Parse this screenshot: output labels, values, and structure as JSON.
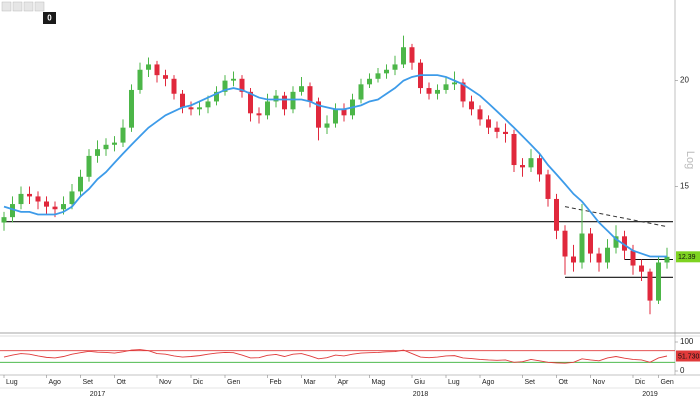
{
  "toolbar": {
    "badge": "0"
  },
  "chart_data": [
    {
      "type": "candlestick",
      "log_scale": true,
      "scale_label": "Log",
      "categories": [
        "Lug",
        null,
        null,
        null,
        null,
        "Ago",
        null,
        null,
        null,
        "Set",
        null,
        null,
        null,
        "Ott",
        null,
        null,
        null,
        null,
        "Nov",
        null,
        null,
        null,
        "Dic",
        null,
        null,
        null,
        "Gen",
        null,
        null,
        null,
        null,
        "Feb",
        null,
        null,
        null,
        "Mar",
        null,
        null,
        null,
        "Apr",
        null,
        null,
        null,
        "Mag",
        null,
        null,
        null,
        null,
        "Giu",
        null,
        null,
        null,
        "Lug",
        null,
        null,
        null,
        "Ago",
        null,
        null,
        null,
        null,
        "Set",
        null,
        null,
        null,
        "Ott",
        null,
        null,
        null,
        "Nov",
        null,
        null,
        null,
        null,
        "Dic",
        null,
        null,
        "Gen",
        null
      ],
      "years": [
        null,
        null,
        null,
        null,
        null,
        null,
        null,
        null,
        null,
        null,
        null,
        "2017",
        null,
        null,
        null,
        null,
        null,
        null,
        null,
        null,
        null,
        null,
        null,
        null,
        null,
        null,
        null,
        null,
        null,
        null,
        null,
        null,
        null,
        null,
        null,
        null,
        null,
        null,
        null,
        null,
        null,
        null,
        null,
        null,
        null,
        null,
        null,
        null,
        null,
        "2018",
        null,
        null,
        null,
        null,
        null,
        null,
        null,
        null,
        null,
        null,
        null,
        null,
        null,
        null,
        null,
        null,
        null,
        null,
        null,
        null,
        null,
        null,
        null,
        null,
        null,
        null,
        "2019",
        null,
        null
      ],
      "open": [
        13.6,
        13.8,
        14.3,
        14.7,
        14.6,
        14.4,
        14.2,
        14.1,
        14.3,
        14.8,
        15.4,
        16.3,
        16.6,
        16.8,
        16.9,
        17.6,
        19.5,
        20.6,
        20.9,
        20.3,
        20.1,
        19.3,
        18.6,
        18.5,
        18.6,
        18.9,
        19.4,
        20.0,
        20.1,
        19.4,
        18.3,
        18.2,
        18.9,
        19.2,
        18.5,
        19.4,
        19.7,
        18.9,
        17.6,
        17.8,
        18.5,
        18.2,
        19.0,
        19.8,
        20.1,
        20.4,
        20.6,
        20.9,
        21.9,
        21.0,
        19.6,
        19.3,
        19.5,
        19.8,
        19.9,
        18.9,
        18.5,
        18.0,
        17.6,
        17.4,
        17.3,
        15.9,
        15.8,
        16.2,
        15.5,
        14.5,
        13.3,
        12.4,
        12.2,
        13.2,
        12.5,
        12.2,
        12.7,
        13.1,
        12.6,
        12.1,
        11.9,
        11.0,
        12.2
      ],
      "high": [
        14.0,
        14.6,
        15.0,
        15.0,
        14.8,
        14.6,
        14.4,
        14.6,
        15.1,
        15.7,
        16.6,
        17.0,
        17.1,
        17.2,
        18.0,
        19.8,
        21.0,
        21.3,
        21.1,
        20.6,
        20.3,
        19.5,
        18.9,
        18.9,
        19.2,
        19.7,
        20.3,
        20.5,
        20.3,
        19.6,
        18.6,
        19.3,
        19.5,
        19.4,
        19.7,
        20.2,
        19.9,
        19.1,
        18.2,
        18.8,
        18.8,
        19.3,
        20.1,
        20.4,
        20.7,
        20.9,
        21.4,
        22.6,
        22.1,
        21.2,
        19.9,
        19.8,
        20.2,
        20.5,
        20.1,
        19.2,
        18.7,
        18.2,
        17.9,
        17.8,
        17.5,
        16.2,
        16.6,
        16.4,
        15.7,
        14.7,
        13.5,
        12.8,
        14.3,
        13.4,
        12.7,
        13.0,
        13.5,
        13.3,
        12.8,
        12.3,
        12.0,
        12.4,
        12.7
      ],
      "low": [
        13.3,
        13.6,
        14.1,
        14.3,
        14.1,
        13.9,
        13.8,
        13.9,
        14.1,
        14.6,
        15.2,
        16.0,
        16.3,
        16.5,
        16.7,
        17.4,
        19.3,
        20.2,
        19.9,
        19.7,
        19.0,
        18.3,
        18.2,
        18.2,
        18.3,
        18.7,
        19.2,
        19.7,
        19.1,
        17.9,
        17.8,
        18.0,
        18.6,
        18.2,
        18.3,
        19.2,
        18.6,
        17.0,
        17.3,
        17.6,
        17.9,
        18.0,
        18.8,
        19.6,
        19.9,
        20.1,
        20.3,
        20.7,
        20.6,
        19.3,
        19.0,
        19.0,
        19.3,
        19.5,
        18.6,
        18.2,
        17.7,
        17.3,
        17.1,
        16.9,
        15.6,
        15.4,
        15.6,
        15.2,
        14.2,
        13.0,
        11.8,
        11.9,
        12.0,
        12.2,
        11.9,
        12.0,
        12.5,
        12.3,
        11.8,
        11.6,
        10.6,
        10.9,
        12.0
      ],
      "close": [
        13.8,
        14.3,
        14.7,
        14.6,
        14.4,
        14.2,
        14.1,
        14.3,
        14.8,
        15.4,
        16.3,
        16.6,
        16.8,
        16.9,
        17.6,
        19.5,
        20.6,
        20.9,
        20.3,
        20.1,
        19.3,
        18.6,
        18.5,
        18.6,
        18.9,
        19.4,
        20.0,
        20.1,
        19.4,
        18.3,
        18.2,
        18.9,
        19.2,
        18.5,
        19.4,
        19.7,
        18.9,
        17.6,
        17.8,
        18.5,
        18.2,
        19.0,
        19.8,
        20.1,
        20.4,
        20.6,
        20.9,
        21.9,
        21.0,
        19.6,
        19.3,
        19.5,
        19.8,
        19.9,
        18.9,
        18.5,
        18.0,
        17.6,
        17.4,
        17.3,
        15.9,
        15.8,
        16.2,
        15.5,
        14.5,
        13.3,
        12.4,
        12.2,
        13.2,
        12.5,
        12.2,
        12.7,
        13.1,
        12.6,
        12.1,
        11.9,
        11.0,
        12.2,
        12.39
      ],
      "up_color": "#4cb648",
      "down_color": "#e0283c",
      "moving_average": [
        14.2,
        14.1,
        14.0,
        14.0,
        13.9,
        13.9,
        13.9,
        14.0,
        14.2,
        14.6,
        14.9,
        15.3,
        15.6,
        16.0,
        16.4,
        16.8,
        17.2,
        17.6,
        17.9,
        18.2,
        18.4,
        18.6,
        18.7,
        18.9,
        19.1,
        19.3,
        19.5,
        19.6,
        19.5,
        19.3,
        19.1,
        19.0,
        19.0,
        19.0,
        19.0,
        19.0,
        18.9,
        18.7,
        18.6,
        18.5,
        18.5,
        18.6,
        18.7,
        18.9,
        19.0,
        19.3,
        19.6,
        20.0,
        20.2,
        20.3,
        20.3,
        20.3,
        20.2,
        20.0,
        19.8,
        19.5,
        19.2,
        18.8,
        18.4,
        18.0,
        17.6,
        17.2,
        16.8,
        16.4,
        15.9,
        15.5,
        15.1,
        14.7,
        14.4,
        14.0,
        13.6,
        13.3,
        13.0,
        12.8,
        12.6,
        12.5,
        12.4,
        12.4,
        12.4
      ],
      "ma_color": "#3d9be9",
      "hlines": [
        {
          "value": 13.63,
          "from": 0,
          "to": 78
        },
        {
          "value": 11.72,
          "from": 66,
          "to": 78
        },
        {
          "value": 12.3,
          "from": 73,
          "to": 78
        }
      ],
      "trendline": {
        "from": [
          66,
          14.2
        ],
        "to": [
          78,
          13.45
        ],
        "dashed": true
      },
      "ylim": [
        10.1,
        24.9
      ],
      "yticks": [
        15,
        20
      ],
      "tag_color": "#7ed321"
    },
    {
      "type": "line",
      "values": [
        48,
        55,
        60,
        58,
        52,
        47,
        45,
        50,
        58,
        63,
        68,
        65,
        64,
        62,
        66,
        72,
        74,
        70,
        60,
        58,
        52,
        48,
        50,
        53,
        58,
        62,
        64,
        63,
        55,
        45,
        46,
        54,
        57,
        50,
        58,
        60,
        52,
        42,
        46,
        55,
        52,
        58,
        62,
        63,
        64,
        66,
        67,
        72,
        60,
        48,
        46,
        48,
        52,
        53,
        45,
        43,
        40,
        38,
        37,
        38,
        30,
        32,
        40,
        35,
        30,
        28,
        27,
        30,
        42,
        38,
        35,
        45,
        50,
        44,
        40,
        38,
        30,
        45,
        51.7303
      ],
      "color": "#e03a3a",
      "ref_lines": [
        {
          "value": 70,
          "color": "#e03a3a"
        },
        {
          "value": 30,
          "color": "#35b035"
        }
      ],
      "ylim": [
        0,
        100
      ],
      "yticks": [
        0,
        100
      ],
      "tag_color": "#e03a3a"
    }
  ]
}
